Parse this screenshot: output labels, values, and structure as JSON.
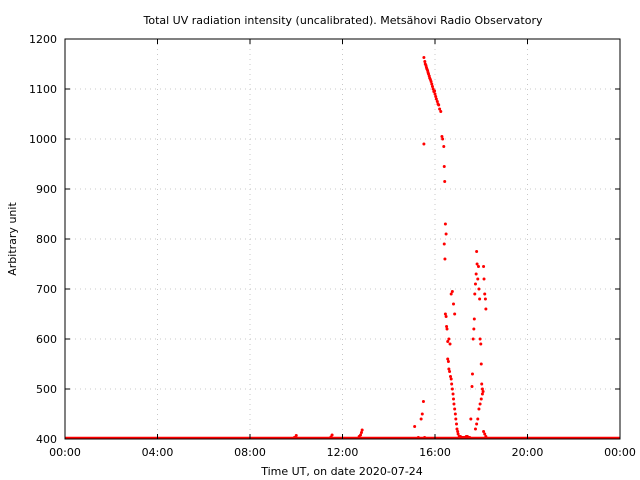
{
  "chart_data": {
    "type": "scatter",
    "title": "Total UV radiation intensity (uncalibrated). Metsähovi Radio Observatory",
    "xlabel": "Time UT, on date 2020-07-24",
    "ylabel": "Arbitrary unit",
    "x_unit": "hours UT",
    "xlim": [
      0,
      24
    ],
    "ylim": [
      400,
      1200
    ],
    "x_ticks": [
      {
        "value": 0,
        "label": "00:00"
      },
      {
        "value": 4,
        "label": "04:00"
      },
      {
        "value": 8,
        "label": "08:00"
      },
      {
        "value": 12,
        "label": "12:00"
      },
      {
        "value": 16,
        "label": "16:00"
      },
      {
        "value": 20,
        "label": "20:00"
      },
      {
        "value": 24,
        "label": "00:00"
      }
    ],
    "y_ticks": [
      {
        "value": 400,
        "label": "400"
      },
      {
        "value": 500,
        "label": "500"
      },
      {
        "value": 600,
        "label": "600"
      },
      {
        "value": 700,
        "label": "700"
      },
      {
        "value": 800,
        "label": "800"
      },
      {
        "value": 900,
        "label": "900"
      },
      {
        "value": 1000,
        "label": "1000"
      },
      {
        "value": 1100,
        "label": "1100"
      },
      {
        "value": 1200,
        "label": "1200"
      }
    ],
    "grid": true,
    "point_color": "#ff0000",
    "baseline": {
      "x_start": 0,
      "x_end": 24,
      "y": 400
    },
    "series": [
      {
        "x": [
          9.92,
          10.0,
          11.5,
          11.55,
          12.72,
          12.78,
          12.82,
          12.85,
          15.12,
          15.28,
          15.4,
          15.45,
          15.5,
          15.52,
          15.55,
          15.52,
          15.56,
          15.58,
          15.61,
          15.63,
          15.65,
          15.68,
          15.7,
          15.72,
          15.75,
          15.77,
          15.8,
          15.83,
          15.86,
          15.89,
          15.92,
          15.95,
          15.98,
          16.0,
          16.03,
          16.06,
          16.1,
          16.13,
          16.16,
          16.2,
          16.25,
          16.3,
          16.33,
          16.38,
          16.4,
          16.42,
          16.45,
          16.48,
          16.4,
          16.43,
          16.45,
          16.48,
          16.5,
          16.52,
          16.55,
          16.58,
          16.6,
          16.63,
          16.67,
          16.7,
          16.72,
          16.75,
          16.78,
          16.8,
          16.82,
          16.85,
          16.88,
          16.9,
          16.93,
          16.95,
          16.98,
          17.0,
          17.05,
          17.1,
          17.15,
          17.2,
          17.25,
          17.3,
          17.35,
          17.4,
          17.45,
          17.5,
          16.55,
          16.6,
          16.65,
          16.7,
          16.75,
          16.8,
          16.85,
          17.55,
          17.6,
          17.62,
          17.65,
          17.68,
          17.7,
          17.72,
          17.75,
          17.78,
          17.8,
          17.82,
          17.85,
          17.88,
          17.9,
          17.93,
          17.95,
          17.98,
          18.0,
          18.02,
          18.05,
          18.08,
          18.1,
          18.12,
          18.15,
          18.18,
          18.2,
          17.75,
          17.8,
          17.85,
          17.9,
          17.95,
          18.0,
          18.05,
          18.1,
          18.15,
          18.2
        ],
        "y": [
          403,
          407,
          404,
          408,
          405,
          408,
          413,
          418,
          425,
          403,
          440,
          450,
          475,
          990,
          403,
          1163,
          1155,
          1150,
          1147,
          1143,
          1140,
          1137,
          1133,
          1130,
          1126,
          1122,
          1119,
          1115,
          1110,
          1105,
          1100,
          1095,
          1096,
          1090,
          1085,
          1080,
          1075,
          1070,
          1068,
          1060,
          1055,
          1005,
          1000,
          985,
          945,
          915,
          830,
          810,
          790,
          760,
          650,
          645,
          625,
          620,
          560,
          555,
          540,
          535,
          525,
          520,
          510,
          500,
          490,
          480,
          470,
          460,
          450,
          440,
          430,
          420,
          415,
          410,
          405,
          405,
          403,
          403,
          403,
          403,
          405,
          405,
          403,
          403,
          595,
          600,
          590,
          690,
          695,
          670,
          650,
          440,
          505,
          530,
          600,
          620,
          640,
          690,
          710,
          730,
          775,
          750,
          720,
          745,
          700,
          680,
          600,
          590,
          550,
          510,
          500,
          495,
          745,
          720,
          690,
          680,
          660,
          420,
          430,
          440,
          460,
          470,
          480,
          490,
          415,
          410,
          405
        ]
      }
    ]
  }
}
